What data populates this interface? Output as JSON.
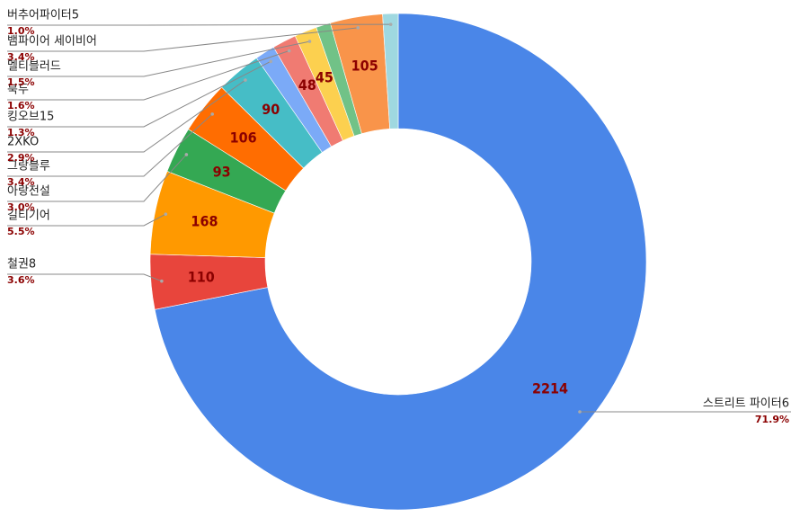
{
  "chart_data": {
    "type": "donut",
    "categories": [
      "스트리트 파이터6",
      "철권8",
      "길티기어",
      "아랑전설",
      "그랑블루",
      "2XKO",
      "킹오브15",
      "북두",
      "멜티블러드",
      null,
      "뱀파이어 세이비어",
      "버추어파이터5"
    ],
    "values": [
      2214,
      110,
      168,
      93,
      106,
      90,
      40,
      48,
      45,
      29,
      105,
      31
    ],
    "value_labels": [
      "2214",
      "110",
      "168",
      "93",
      "106",
      "90",
      null,
      "48",
      "45",
      null,
      "105",
      null
    ],
    "percent_labels": [
      "71.9%",
      "3.6%",
      "5.5%",
      "3.0%",
      "3.4%",
      "2.9%",
      "1.3%",
      "1.6%",
      "1.5%",
      null,
      "3.4%",
      "1.0%"
    ],
    "colors": [
      "#4a86e8",
      "#e8453c",
      "#ff9900",
      "#34a853",
      "#ff6d01",
      "#46bdc6",
      "#7baaf7",
      "#f07b72",
      "#fcd04f",
      "#71c287",
      "#f9944a",
      "#9fd8e0"
    ]
  }
}
